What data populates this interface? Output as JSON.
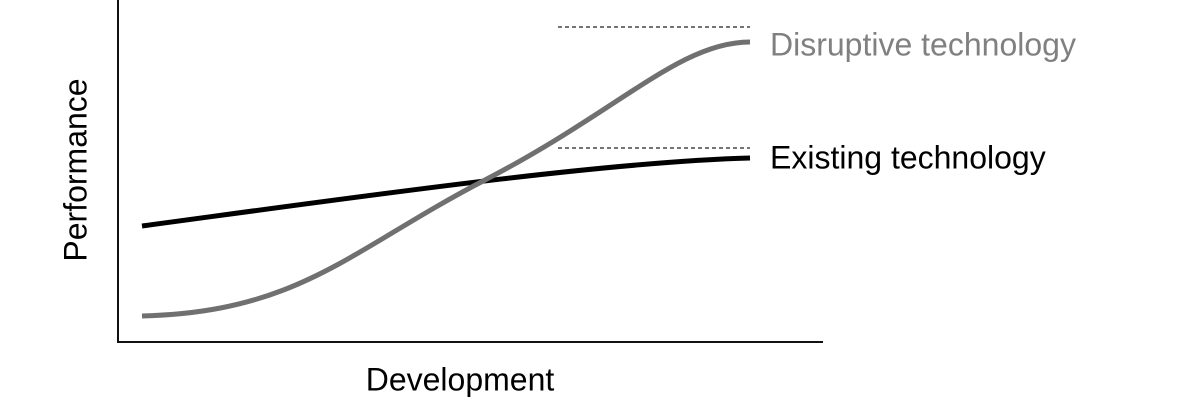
{
  "axes": {
    "y_label": "Performance",
    "x_label": "Development"
  },
  "curves": [
    {
      "label": "Disruptive technology"
    },
    {
      "label": "Existing technology"
    }
  ]
}
